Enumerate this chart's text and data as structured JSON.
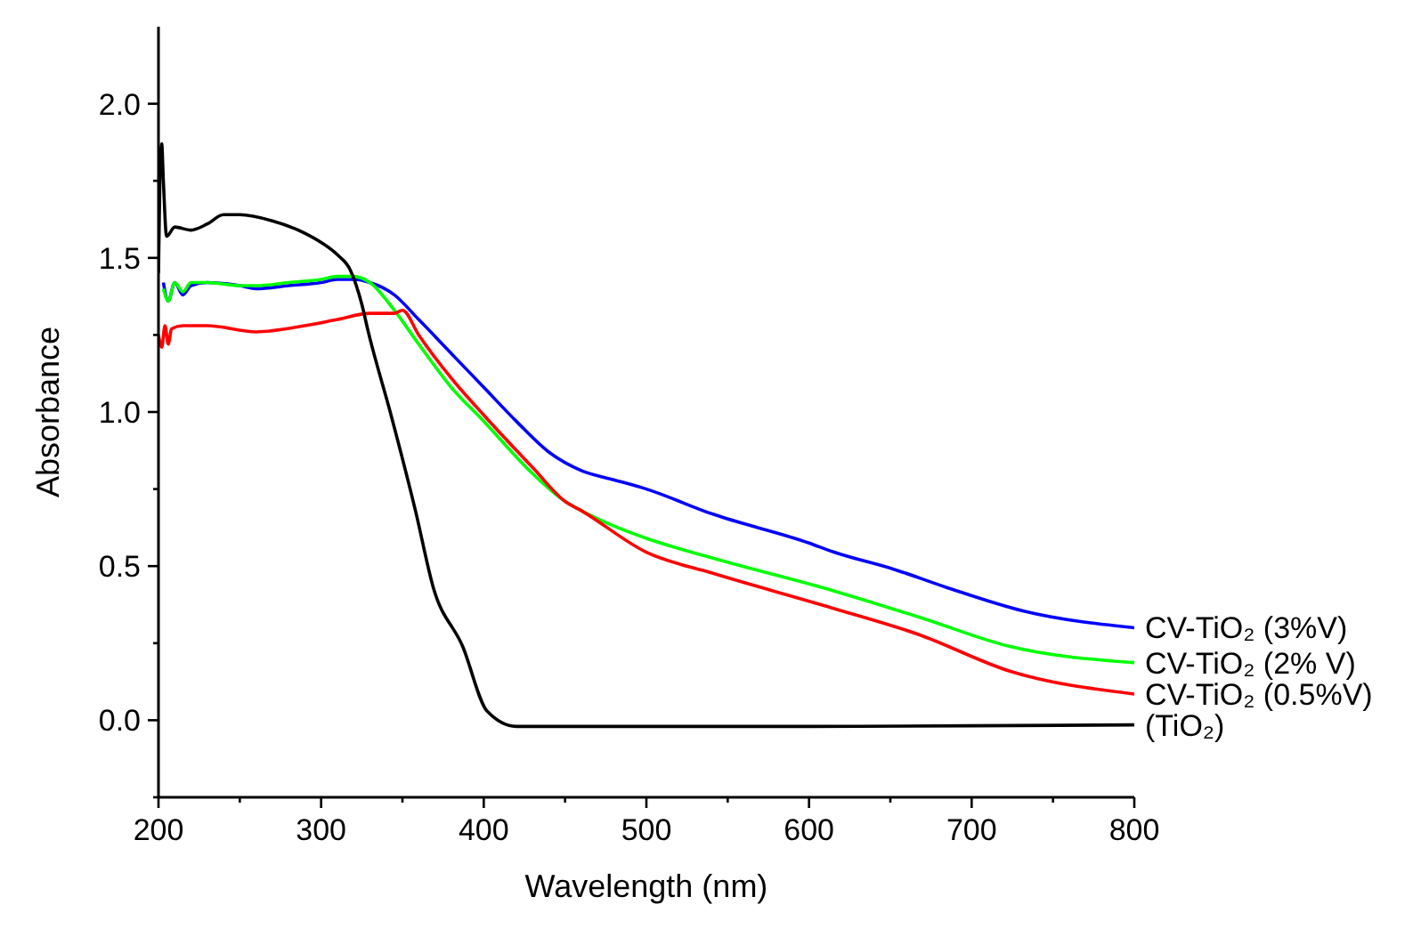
{
  "chart_data": {
    "type": "line",
    "xlabel": "Wavelength (nm)",
    "ylabel": "Absorbance",
    "xlim": [
      200,
      800
    ],
    "xticks": [
      200,
      {
        "value": 250,
        "label": null
      },
      300,
      {
        "value": 350,
        "label": null
      },
      400,
      {
        "value": 450,
        "label": null
      },
      500,
      {
        "value": 550,
        "label": null
      },
      600,
      {
        "value": 650,
        "label": null
      },
      700,
      {
        "value": 750,
        "label": null
      },
      800
    ],
    "ylim": [
      -0.25,
      2.25
    ],
    "yticks": [
      {
        "value": -0.25,
        "label": null
      },
      {
        "value": 0,
        "label": "0.0"
      },
      {
        "value": 0.25,
        "label": null
      },
      0.5,
      {
        "value": 0.75,
        "label": null
      },
      {
        "value": 1,
        "label": "1.0"
      },
      {
        "value": 1.25,
        "label": null
      },
      1.5,
      {
        "value": 1.75,
        "label": null
      },
      {
        "value": 2,
        "label": "2.0"
      }
    ],
    "grid": false,
    "legend": false,
    "marker": "none",
    "line_style": "solid",
    "series": [
      {
        "name": "CV-TiO₂ (3%V)",
        "color": "#0000ff",
        "x": [
          203,
          206,
          210,
          215,
          220,
          230,
          250,
          260,
          280,
          300,
          310,
          320,
          330,
          345,
          360,
          380,
          400,
          420,
          440,
          460,
          480,
          500,
          540,
          600,
          615,
          652,
          685,
          732,
          800
        ],
        "values": [
          1.42,
          1.36,
          1.42,
          1.38,
          1.41,
          1.42,
          1.41,
          1.4,
          1.41,
          1.42,
          1.43,
          1.43,
          1.42,
          1.38,
          1.3,
          1.19,
          1.08,
          0.97,
          0.87,
          0.81,
          0.78,
          0.75,
          0.67,
          0.575,
          0.546,
          0.49,
          0.43,
          0.354,
          0.3
        ]
      },
      {
        "name": "CV-TiO₂ (2% V)",
        "color": "#00ff00",
        "x": [
          203,
          206,
          210,
          215,
          220,
          230,
          250,
          260,
          280,
          300,
          310,
          320,
          330,
          345,
          360,
          380,
          400,
          430,
          450,
          460,
          480,
          500,
          540,
          615,
          668,
          723,
          800
        ],
        "values": [
          1.4,
          1.36,
          1.42,
          1.39,
          1.42,
          1.42,
          1.41,
          1.41,
          1.42,
          1.43,
          1.44,
          1.44,
          1.42,
          1.33,
          1.22,
          1.08,
          0.97,
          0.8,
          0.71,
          0.68,
          0.63,
          0.59,
          0.527,
          0.42,
          0.334,
          0.24,
          0.187
        ]
      },
      {
        "name": "CV-TiO₂ (0.5%V)",
        "color": "#ff0000",
        "x": [
          200,
          202,
          204,
          206,
          208,
          215,
          230,
          260,
          290,
          310,
          330,
          345,
          350,
          360,
          380,
          400,
          430,
          450,
          460,
          500,
          540,
          615,
          668,
          723,
          800
        ],
        "values": [
          1.25,
          1.21,
          1.28,
          1.22,
          1.27,
          1.28,
          1.28,
          1.26,
          1.28,
          1.3,
          1.32,
          1.32,
          1.33,
          1.25,
          1.11,
          0.99,
          0.82,
          0.71,
          0.68,
          0.545,
          0.478,
          0.363,
          0.277,
          0.16,
          0.085
        ]
      },
      {
        "name": "(TiO₂)",
        "color": "#000000",
        "x": [
          200,
          201,
          202,
          203,
          205,
          210,
          220,
          230,
          240,
          250,
          270,
          290,
          300,
          310,
          318,
          325,
          329,
          343,
          358,
          369,
          387,
          402,
          420,
          500,
          600,
          700,
          800
        ],
        "values": [
          1.45,
          1.8,
          1.87,
          1.75,
          1.57,
          1.6,
          1.59,
          1.61,
          1.64,
          1.64,
          1.62,
          1.58,
          1.55,
          1.51,
          1.46,
          1.35,
          1.26,
          0.99,
          0.68,
          0.43,
          0.24,
          0.03,
          -0.02,
          -0.02,
          -0.02,
          -0.018,
          -0.015
        ]
      }
    ]
  }
}
